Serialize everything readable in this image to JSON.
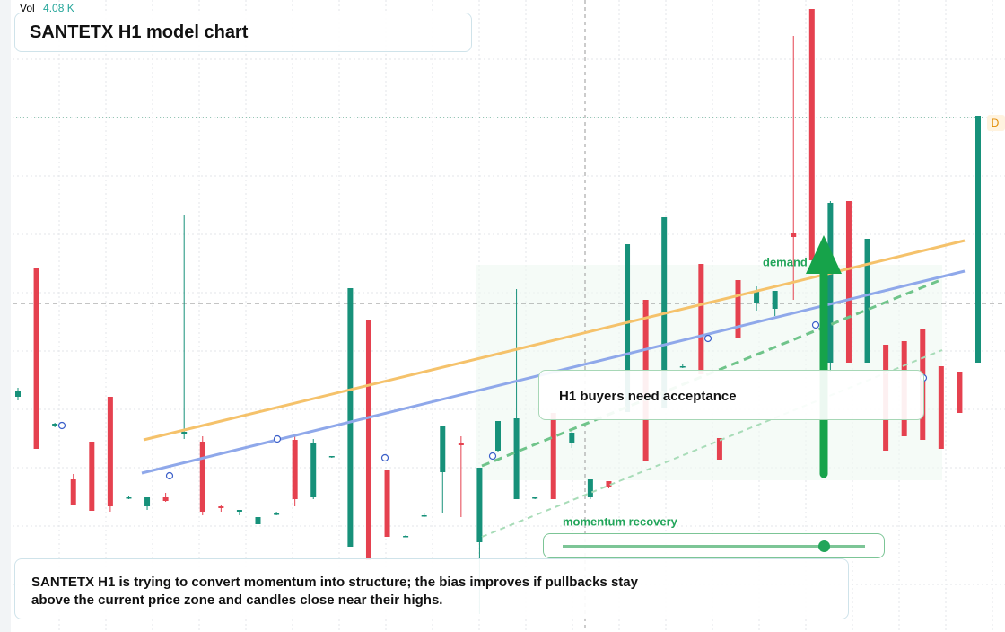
{
  "header": {
    "vol_label": "Vol",
    "vol_value": "4.08 K",
    "title": "SANTETX H1 model chart"
  },
  "chart_data": {
    "type": "candlestick",
    "ylim": [
      0,
      704
    ],
    "grid": true,
    "up_color": "#17917a",
    "down_color": "#e5414f",
    "open": [
      262,
      406,
      230,
      170,
      212,
      262,
      150,
      140,
      150,
      220,
      212,
      140,
      134,
      120,
      132,
      214,
      150,
      196,
      95,
      347,
      180,
      107,
      130,
      178,
      210,
      100,
      202,
      148,
      150,
      244,
      210,
      150,
      168,
      245,
      370,
      250,
      296,
      410,
      216,
      392,
      366,
      360,
      445,
      694,
      300,
      480,
      300,
      320,
      324,
      338,
      296,
      290,
      300
    ],
    "high": [
      272,
      406,
      233,
      176,
      212,
      262,
      152,
      150,
      155,
      465,
      218,
      142,
      136,
      135,
      134,
      218,
      215,
      196,
      383,
      347,
      180,
      108,
      132,
      230,
      218,
      183,
      235,
      382,
      150,
      244,
      225,
      170,
      168,
      432,
      370,
      462,
      299,
      410,
      216,
      392,
      385,
      380,
      664,
      694,
      480,
      480,
      438,
      320,
      324,
      338,
      296,
      290,
      575
    ],
    "low": [
      258,
      204,
      228,
      142,
      135,
      134,
      148,
      136,
      145,
      215,
      130,
      134,
      130,
      118,
      130,
      140,
      148,
      194,
      95,
      80,
      106,
      106,
      128,
      132,
      128,
      20,
      200,
      148,
      148,
      148,
      205,
      148,
      160,
      245,
      190,
      250,
      294,
      287,
      192,
      327,
      358,
      352,
      370,
      414,
      290,
      300,
      300,
      202,
      218,
      214,
      204,
      244,
      300
    ],
    "close": [
      268,
      204,
      232,
      142,
      135,
      140,
      150,
      150,
      146,
      223,
      134,
      138,
      136,
      128,
      132,
      148,
      210,
      196,
      383,
      80,
      106,
      107,
      130,
      230,
      208,
      183,
      235,
      238,
      150,
      148,
      222,
      170,
      162,
      432,
      190,
      462,
      296,
      287,
      192,
      327,
      380,
      380,
      440,
      414,
      478,
      300,
      438,
      202,
      218,
      214,
      204,
      244,
      575
    ],
    "annotations": {
      "zone": "demand side",
      "callout": "H1 buyers need acceptance",
      "slider": "momentum recovery",
      "level_tag": "D"
    }
  },
  "footer": {
    "note_line1": "SANTETX H1 is trying to convert momentum into structure; the bias improves if pullbacks stay",
    "note_line2": "above the current price zone and candles close near their highs."
  }
}
